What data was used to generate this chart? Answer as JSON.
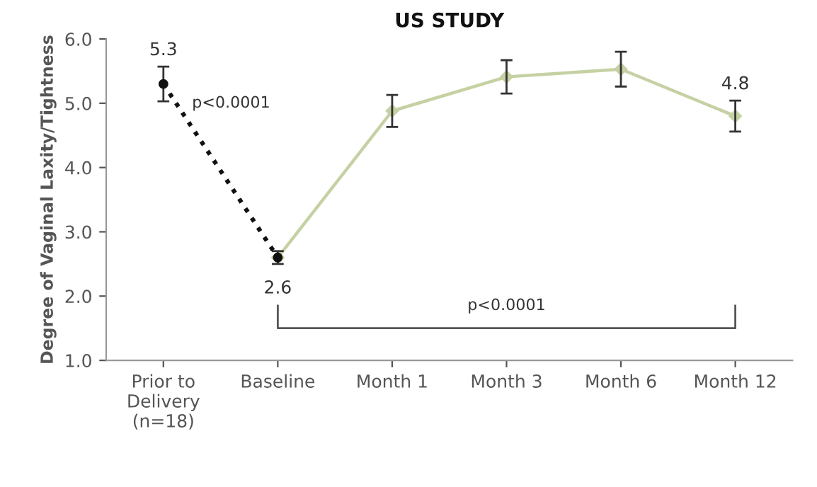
{
  "chart_data": {
    "type": "line",
    "title": "US STUDY",
    "ylabel": "Degree of Vaginal Laxity/Tightness",
    "categories": [
      "Prior to\nDelivery\n(n=18)",
      "Baseline",
      "Month 1",
      "Month 3",
      "Month 6",
      "Month 12"
    ],
    "series": [
      {
        "color": "#111111",
        "line_style": "dotted",
        "marker": "circle",
        "values": [
          5.3,
          2.6,
          null,
          null,
          null,
          null
        ],
        "errors": [
          0.27,
          null,
          null,
          null,
          null,
          null
        ],
        "value_labels": [
          "5.3",
          null,
          null,
          null,
          null,
          null
        ]
      },
      {
        "color": "#c5d1a3",
        "line_style": "solid",
        "marker": "diamond",
        "values": [
          null,
          2.6,
          4.88,
          5.41,
          5.53,
          4.8
        ],
        "errors": [
          null,
          0.1,
          0.25,
          0.26,
          0.27,
          0.24
        ],
        "value_labels": [
          null,
          "2.6",
          null,
          null,
          null,
          "4.8"
        ]
      }
    ],
    "ylim": [
      1.0,
      6.0
    ],
    "yticks": [
      {
        "value": 1.0,
        "label": "1.0"
      },
      {
        "value": 2.0,
        "label": "2.0"
      },
      {
        "value": 3.0,
        "label": "3.0"
      },
      {
        "value": 4.0,
        "label": "4.0"
      },
      {
        "value": 5.0,
        "label": "5.0"
      },
      {
        "value": 6.0,
        "label": "6.0"
      }
    ],
    "grid": false,
    "legend": false,
    "annotations": [
      "p<0.0001",
      "p<0.0001"
    ]
  }
}
